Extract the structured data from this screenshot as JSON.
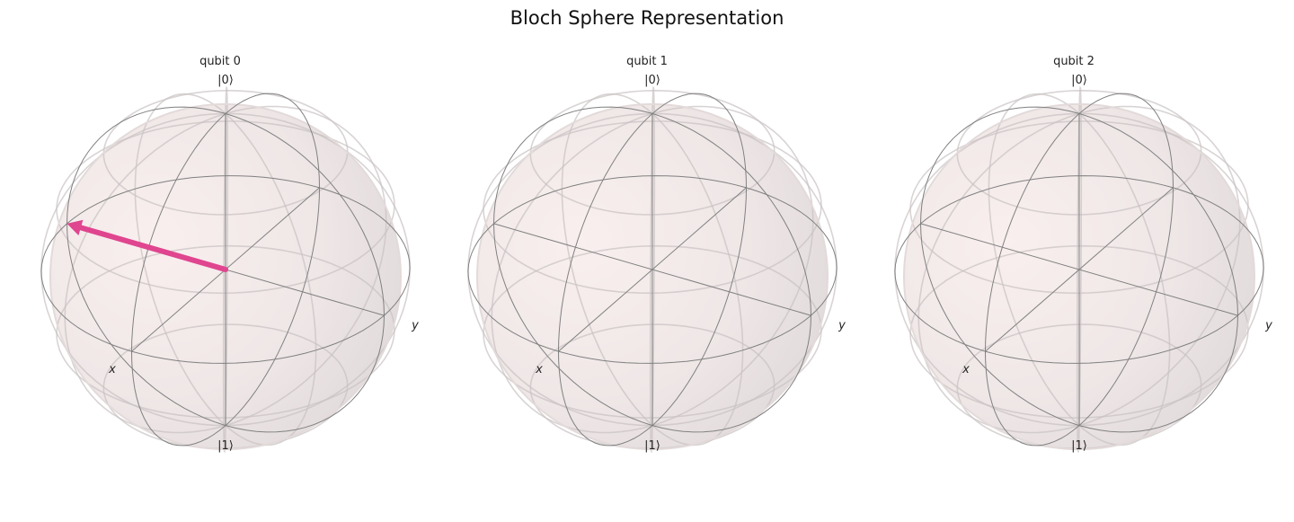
{
  "figure": {
    "title": "Bloch Sphere Representation"
  },
  "chart_data": {
    "type": "bloch_sphere",
    "title": "Bloch Sphere Representation",
    "axis_labels": {
      "x": "x",
      "y": "y",
      "top": "|0⟩",
      "bottom": "|1⟩"
    },
    "vector_color": "#e0458f",
    "sphere_color": "#f2e6e6",
    "wire_color": "#808080",
    "qubits": [
      {
        "label": "qubit 0",
        "vector": [
          0.0,
          -1.0,
          0.0
        ],
        "show_vector": true
      },
      {
        "label": "qubit 1",
        "vector": null,
        "show_vector": false
      },
      {
        "label": "qubit 2",
        "vector": null,
        "show_vector": false
      }
    ]
  }
}
